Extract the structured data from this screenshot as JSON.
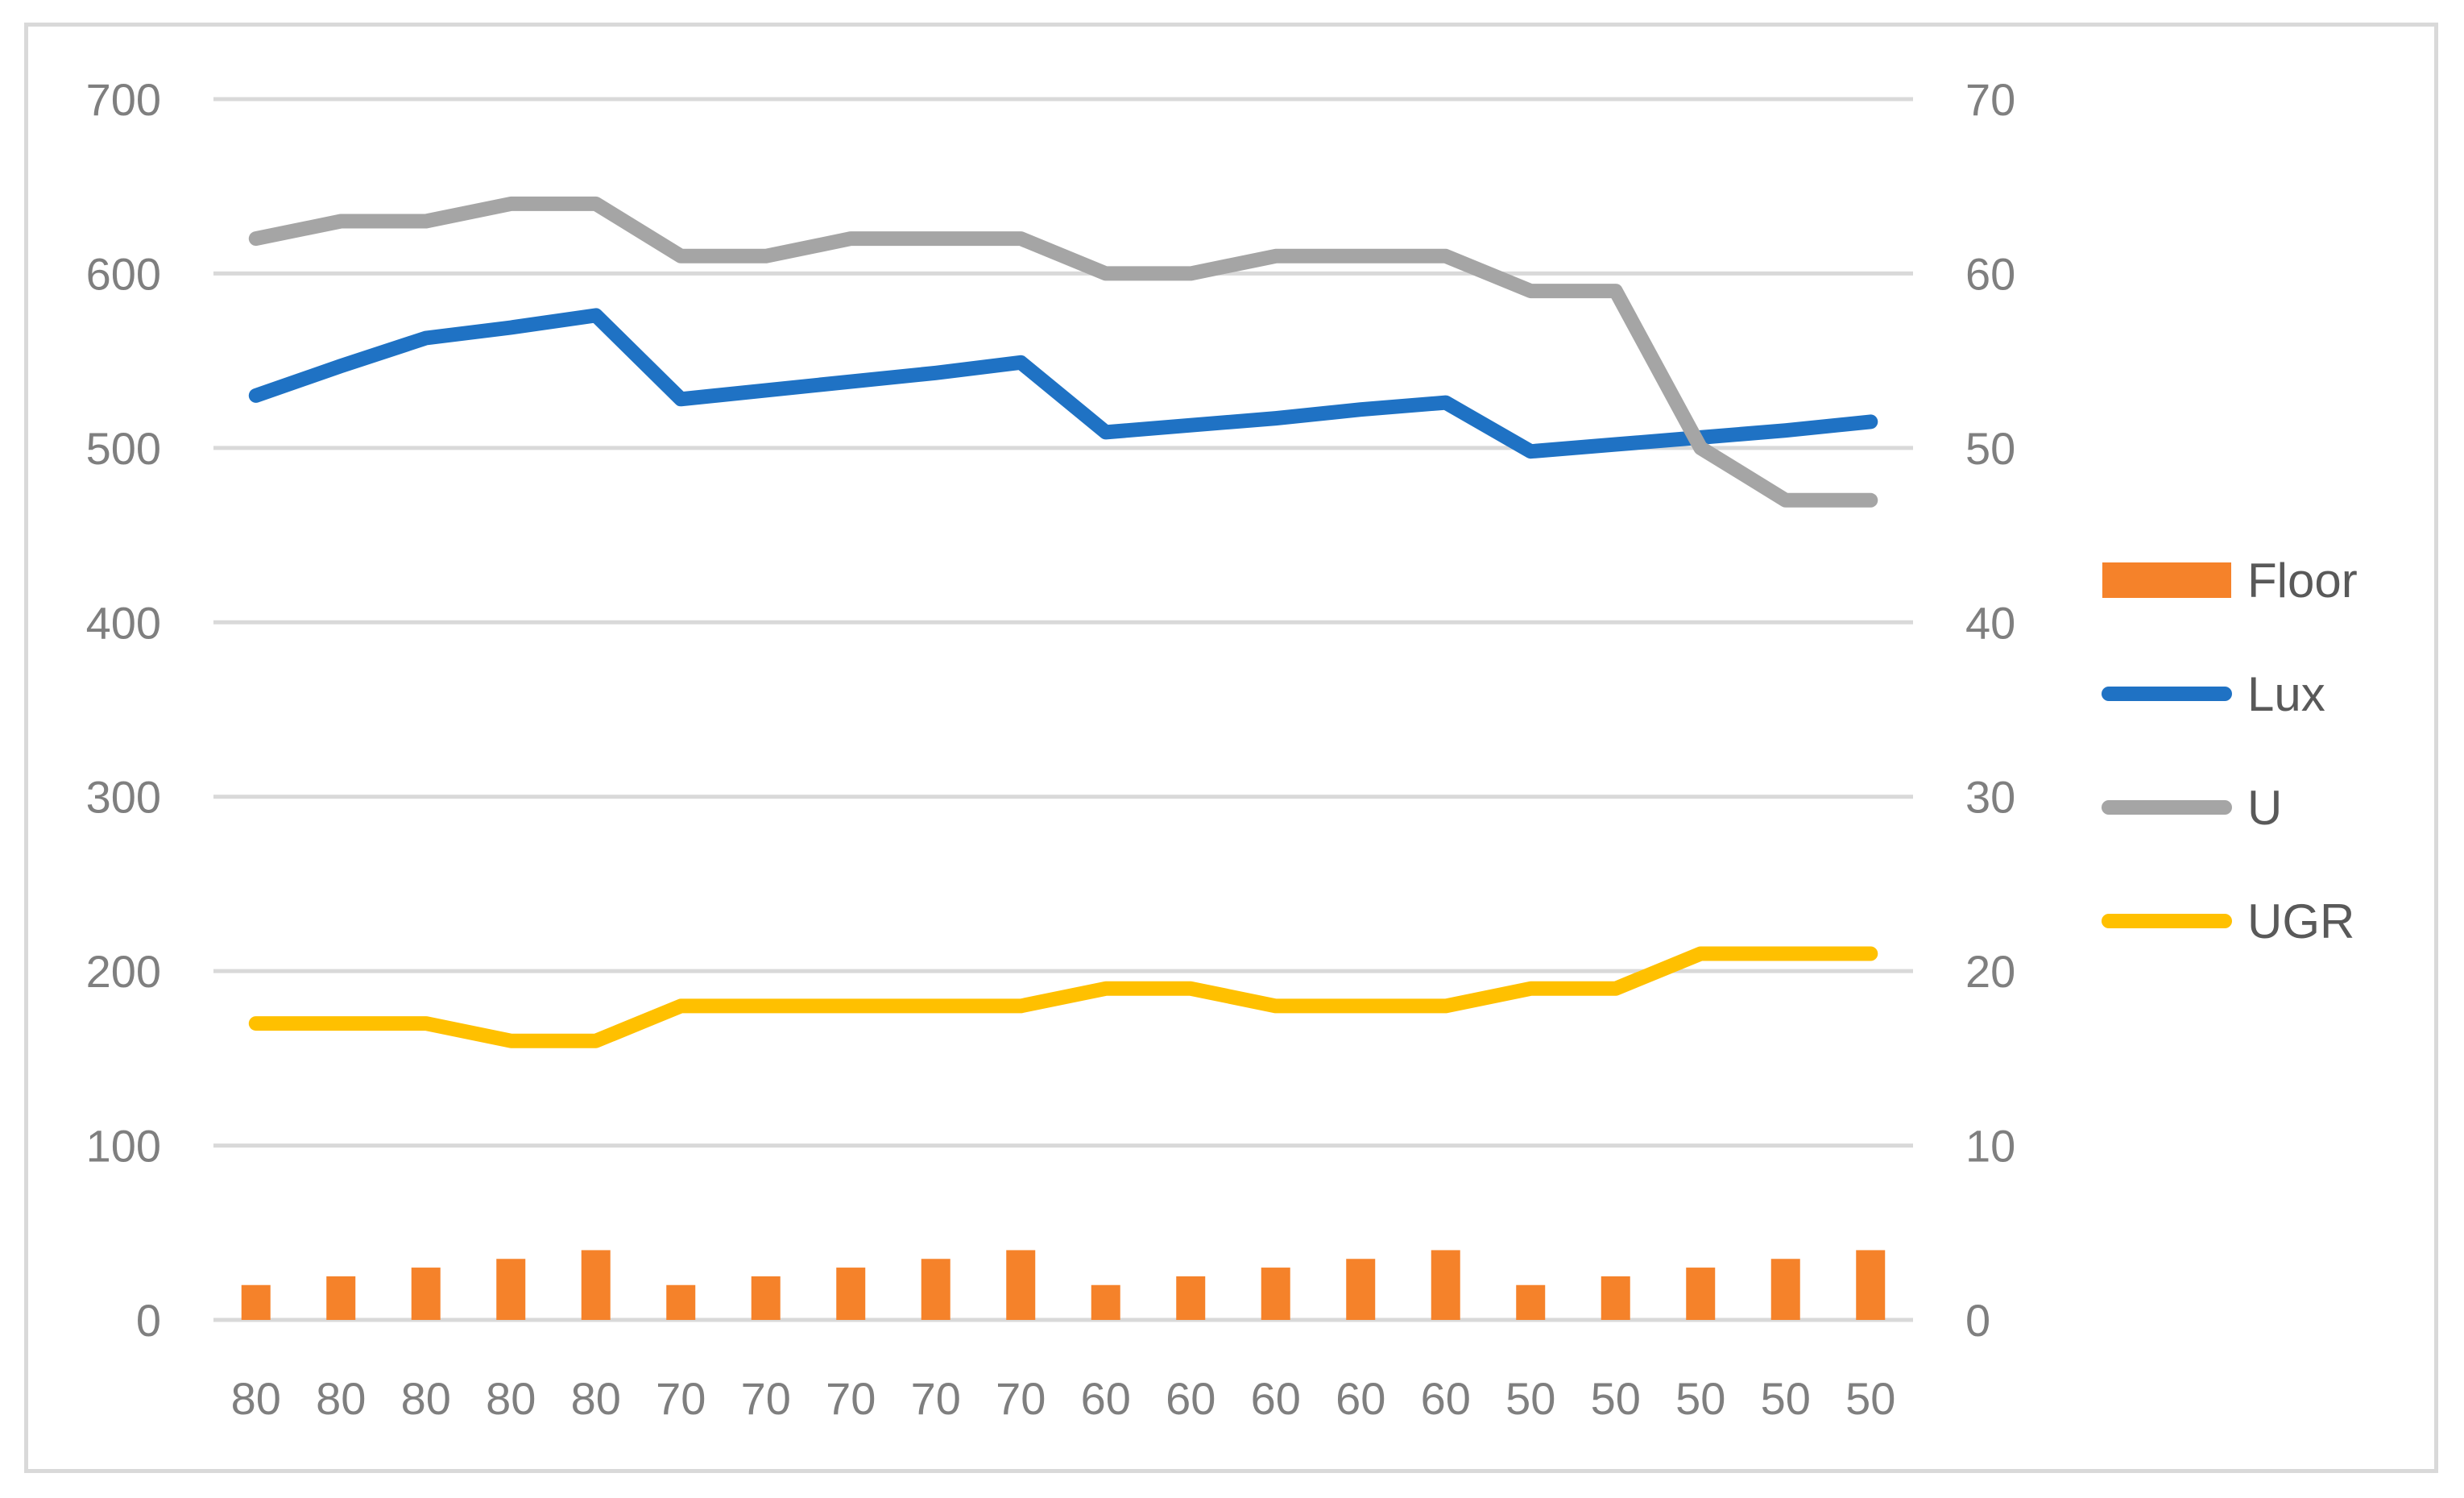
{
  "chart_data": {
    "type": "bar",
    "title": "",
    "xlabel": "",
    "ylabel": "",
    "y2label": "",
    "categories": [
      "80",
      "80",
      "80",
      "80",
      "80",
      "70",
      "70",
      "70",
      "70",
      "70",
      "60",
      "60",
      "60",
      "60",
      "60",
      "50",
      "50",
      "50",
      "50",
      "50"
    ],
    "y_left": {
      "range": [
        0,
        700
      ],
      "ticks": [
        "0",
        "100",
        "200",
        "300",
        "400",
        "500",
        "600",
        "700"
      ]
    },
    "y_right": {
      "range": [
        0,
        70
      ],
      "ticks": [
        "0",
        "10",
        "20",
        "30",
        "40",
        "50",
        "60",
        "70"
      ]
    },
    "grid": "horizontal",
    "legend_position": "right",
    "series": [
      {
        "name": "Floor",
        "kind": "bar",
        "axis": "left",
        "color": "#f5822a",
        "values": [
          20,
          25,
          30,
          35,
          40,
          20,
          25,
          30,
          35,
          40,
          20,
          25,
          30,
          35,
          40,
          20,
          25,
          30,
          35,
          40
        ]
      },
      {
        "name": "Lux",
        "kind": "line",
        "axis": "left",
        "color": "#1f72c4",
        "values": [
          530,
          547,
          563,
          569,
          576,
          528,
          533,
          538,
          543,
          549,
          509,
          513,
          517,
          522,
          526,
          498,
          502,
          506,
          510,
          515
        ]
      },
      {
        "name": "U",
        "kind": "line",
        "axis": "right",
        "color": "#a5a5a5",
        "values": [
          62,
          63,
          63,
          64,
          64,
          61,
          61,
          62,
          62,
          62,
          60,
          60,
          61,
          61,
          61,
          59,
          59,
          50,
          47,
          47
        ]
      },
      {
        "name": "UGR",
        "kind": "line",
        "axis": "right",
        "color": "#ffc000",
        "values": [
          17,
          17,
          17,
          16,
          16,
          18,
          18,
          18,
          18,
          18,
          19,
          19,
          18,
          18,
          18,
          19,
          19,
          21,
          21,
          21
        ]
      }
    ]
  }
}
